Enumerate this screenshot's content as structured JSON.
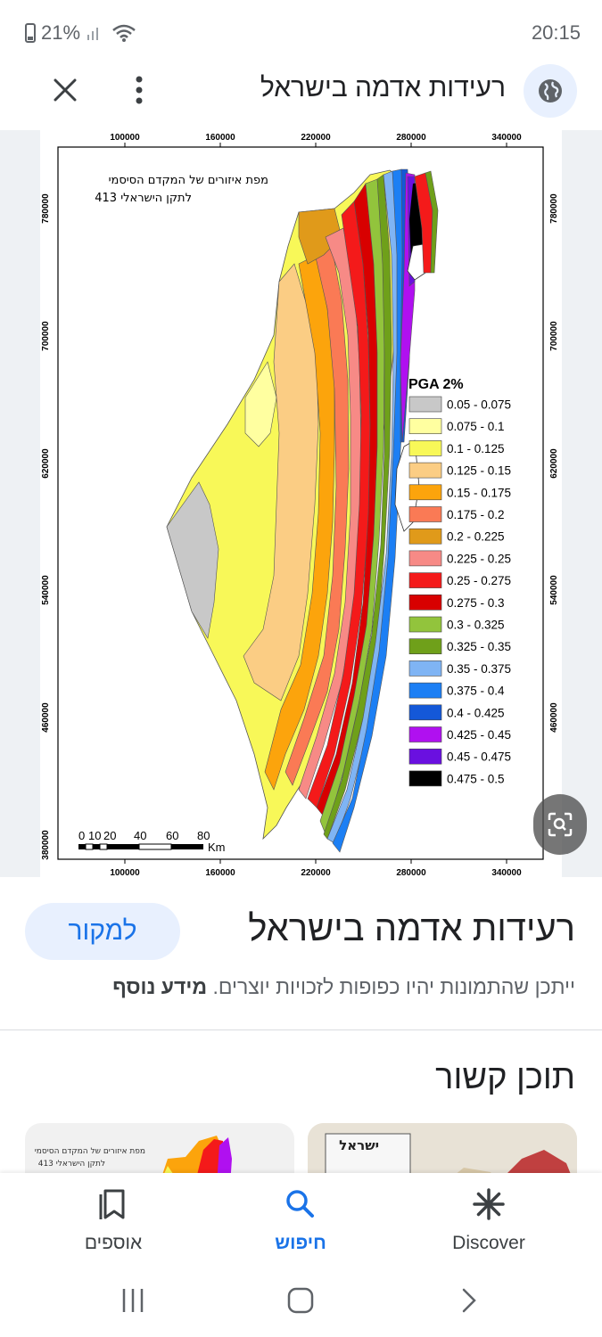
{
  "status": {
    "battery": "21%",
    "time": "20:15"
  },
  "top_bar": {
    "title": "רעידות אדמה בישראל"
  },
  "map": {
    "caption_line1": "מפת איזורים של המקדם הסיסמי",
    "caption_line2": "לתקן הישראלי 413",
    "x_ticks": [
      "100000",
      "160000",
      "220000",
      "280000",
      "340000"
    ],
    "y_ticks": [
      "780000",
      "700000",
      "620000",
      "540000",
      "460000",
      "380000"
    ],
    "scale_numbers": [
      "0",
      "10",
      "20",
      "40",
      "60",
      "80"
    ],
    "scale_unit": "Km",
    "legend_title": "PGA 2%",
    "legend": [
      {
        "label": "0.05 - 0.075",
        "color": "#c8c8c8"
      },
      {
        "label": "0.075 - 0.1",
        "color": "#ffffa0"
      },
      {
        "label": "0.1 - 0.125",
        "color": "#f8f858"
      },
      {
        "label": "0.125 - 0.15",
        "color": "#fbcd84"
      },
      {
        "label": "0.15 - 0.175",
        "color": "#fca40c"
      },
      {
        "label": "0.175 - 0.2",
        "color": "#fa7a55"
      },
      {
        "label": "0.2 - 0.225",
        "color": "#e09a1a"
      },
      {
        "label": "0.225 - 0.25",
        "color": "#f78a86"
      },
      {
        "label": "0.25 - 0.275",
        "color": "#f41a1a"
      },
      {
        "label": "0.275 - 0.3",
        "color": "#d80000"
      },
      {
        "label": "0.3 - 0.325",
        "color": "#92c43c"
      },
      {
        "label": "0.325 - 0.35",
        "color": "#6fa01a"
      },
      {
        "label": "0.35 - 0.375",
        "color": "#7fb4f4"
      },
      {
        "label": "0.375 - 0.4",
        "color": "#1c7ff4"
      },
      {
        "label": "0.4 - 0.425",
        "color": "#1458d8"
      },
      {
        "label": "0.425 - 0.45",
        "color": "#b010f0"
      },
      {
        "label": "0.45 - 0.475",
        "color": "#6a10e0"
      },
      {
        "label": "0.475 - 0.5",
        "color": "#000000"
      }
    ]
  },
  "result": {
    "title": "רעידות אדמה בישראל",
    "source_button": "למקור",
    "copyright_text": "ייתכן שהתמונות יהיו כפופות לזכויות יוצרים.",
    "more_info": "מידע נוסף"
  },
  "related": {
    "heading": "תוכן קשור",
    "thumb1_line1": "מפת איזורים של המקדם הסיסמי",
    "thumb1_line2": "לתקן הישראלי 413",
    "thumb2_label": "ישראל"
  },
  "bottom_nav": {
    "collections": "אוספים",
    "search": "חיפוש",
    "discover": "Discover"
  }
}
